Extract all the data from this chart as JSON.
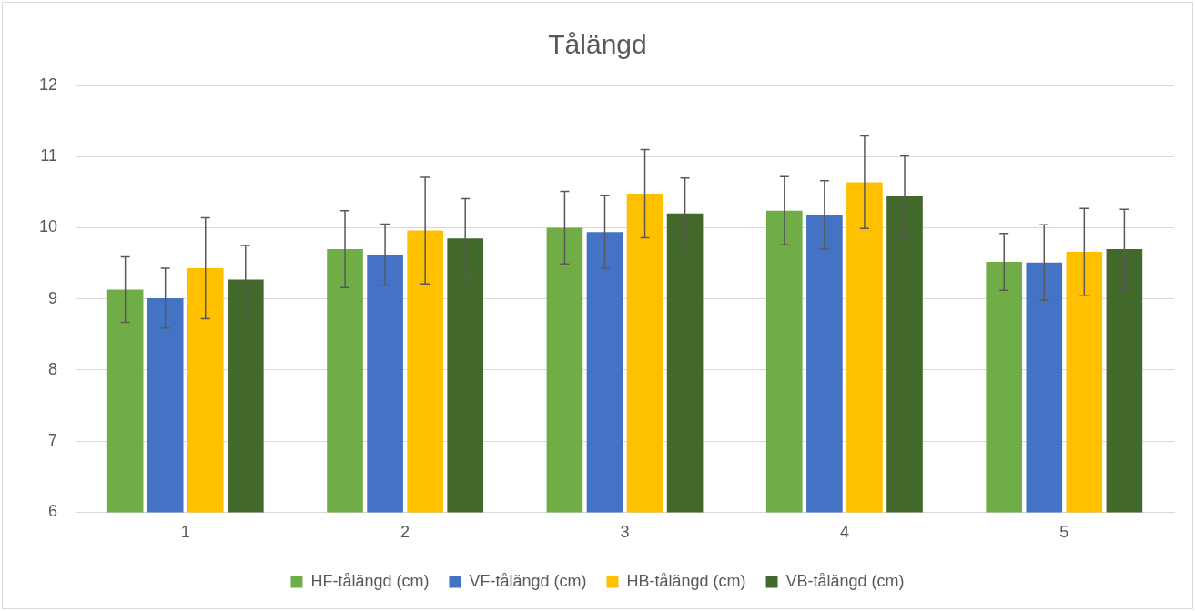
{
  "chart_data": {
    "type": "bar",
    "title": "Tålängd",
    "categories": [
      "1",
      "2",
      "3",
      "4",
      "5"
    ],
    "series": [
      {
        "name": "HF-tålängd (cm)",
        "color": "#70ad47",
        "values": [
          9.13,
          9.7,
          10.0,
          10.24,
          9.52
        ],
        "errors": [
          0.46,
          0.54,
          0.51,
          0.48,
          0.4
        ]
      },
      {
        "name": "VF-tålängd (cm)",
        "color": "#4472c4",
        "values": [
          9.01,
          9.62,
          9.94,
          10.18,
          9.51
        ],
        "errors": [
          0.42,
          0.43,
          0.51,
          0.48,
          0.53
        ]
      },
      {
        "name": "HB-tålängd (cm)",
        "color": "#ffc000",
        "values": [
          9.43,
          9.96,
          10.48,
          10.64,
          9.66
        ],
        "errors": [
          0.71,
          0.75,
          0.62,
          0.65,
          0.61
        ]
      },
      {
        "name": "VB-tålängd (cm)",
        "color": "#43682b",
        "values": [
          9.27,
          9.85,
          10.2,
          10.44,
          9.7
        ],
        "errors": [
          0.48,
          0.56,
          0.5,
          0.57,
          0.56
        ]
      }
    ],
    "ylim": [
      6,
      12
    ],
    "yticks": [
      6,
      7,
      8,
      9,
      10,
      11,
      12
    ],
    "grid": "y",
    "legend": "bottom"
  }
}
